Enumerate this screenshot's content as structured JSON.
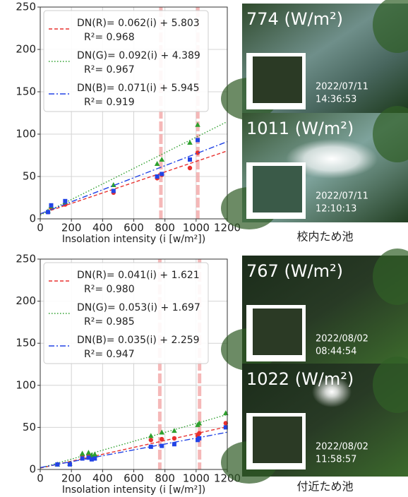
{
  "chart_data": [
    {
      "type": "scatter",
      "xlabel": "Insolation intensity (i [w/m²])",
      "xlim": [
        0,
        1200
      ],
      "ylim": [
        0,
        250
      ],
      "xticks": [
        0,
        200,
        400,
        600,
        800,
        1000,
        1200
      ],
      "yticks": [
        0,
        50,
        100,
        150,
        200,
        250
      ],
      "grid": true,
      "vlines": [
        774,
        1011
      ],
      "x": [
        50,
        70,
        160,
        470,
        750,
        780,
        960,
        1010
      ],
      "series": [
        {
          "name": "DN(R)= 0.062(i) + 5.803",
          "r2_label": "R²= 0.968",
          "color": "#e8312f",
          "marker": "circle",
          "dash": "5,3",
          "slope": 0.062,
          "intercept": 5.803,
          "values": [
            8,
            13,
            17,
            31,
            48,
            52,
            60,
            78
          ]
        },
        {
          "name": "DN(G)= 0.092(i) + 4.389",
          "r2_label": "R²= 0.967",
          "color": "#2ea02e",
          "marker": "triangle",
          "dash": "1.5,2.5",
          "slope": 0.092,
          "intercept": 4.389,
          "values": [
            9,
            15,
            20,
            40,
            65,
            70,
            90,
            111
          ]
        },
        {
          "name": "DN(B)= 0.071(i) + 5.945",
          "r2_label": "R²= 0.919",
          "color": "#2244e6",
          "marker": "square",
          "dash": "8,3,2,3",
          "slope": 0.071,
          "intercept": 5.945,
          "values": [
            8,
            16,
            21,
            33,
            50,
            53,
            70,
            93
          ]
        }
      ]
    },
    {
      "type": "scatter",
      "xlabel": "Insolation intensity (i [w/m²])",
      "xlim": [
        0,
        1200
      ],
      "ylim": [
        0,
        250
      ],
      "xticks": [
        0,
        200,
        400,
        600,
        800,
        1000,
        1200
      ],
      "yticks": [
        0,
        50,
        100,
        150,
        200,
        250
      ],
      "grid": true,
      "vlines": [
        767,
        1022
      ],
      "x": [
        110,
        190,
        270,
        310,
        330,
        350,
        710,
        780,
        860,
        1010,
        1020,
        1190
      ],
      "series": [
        {
          "name": "DN(R)= 0.041(i) + 1.621",
          "r2_label": "R²= 0.980",
          "color": "#e8312f",
          "marker": "circle",
          "dash": "5,3",
          "slope": 0.041,
          "intercept": 1.621,
          "values": [
            6,
            7,
            16,
            17,
            13,
            15,
            35,
            36,
            37,
            40,
            43,
            55
          ]
        },
        {
          "name": "DN(G)= 0.053(i) + 1.697",
          "r2_label": "R²= 0.985",
          "color": "#2ea02e",
          "marker": "triangle",
          "dash": "1.5,2.5",
          "slope": 0.053,
          "intercept": 1.697,
          "values": [
            6,
            7,
            19,
            20,
            17,
            18,
            40,
            44,
            46,
            53,
            55,
            67
          ]
        },
        {
          "name": "DN(B)= 0.035(i) + 2.259",
          "r2_label": "R²= 0.947",
          "color": "#2244e6",
          "marker": "square",
          "dash": "8,3,2,3",
          "slope": 0.035,
          "intercept": 2.259,
          "values": [
            6,
            6,
            13,
            14,
            12,
            13,
            27,
            28,
            30,
            35,
            37,
            50
          ]
        }
      ]
    }
  ],
  "photos": [
    {
      "irradiance": "774 (W/m²)",
      "date": "2022/07/11",
      "time": "14:36:53"
    },
    {
      "irradiance": "1011 (W/m²)",
      "date": "2022/07/11",
      "time": "12:10:13"
    },
    {
      "irradiance": "767 (W/m²)",
      "date": "2022/08/02",
      "time": "08:44:54"
    },
    {
      "irradiance": "1022 (W/m²)",
      "date": "2022/08/02",
      "time": "11:58:57"
    }
  ],
  "captions": [
    "校内ため池",
    "付近ため池"
  ]
}
